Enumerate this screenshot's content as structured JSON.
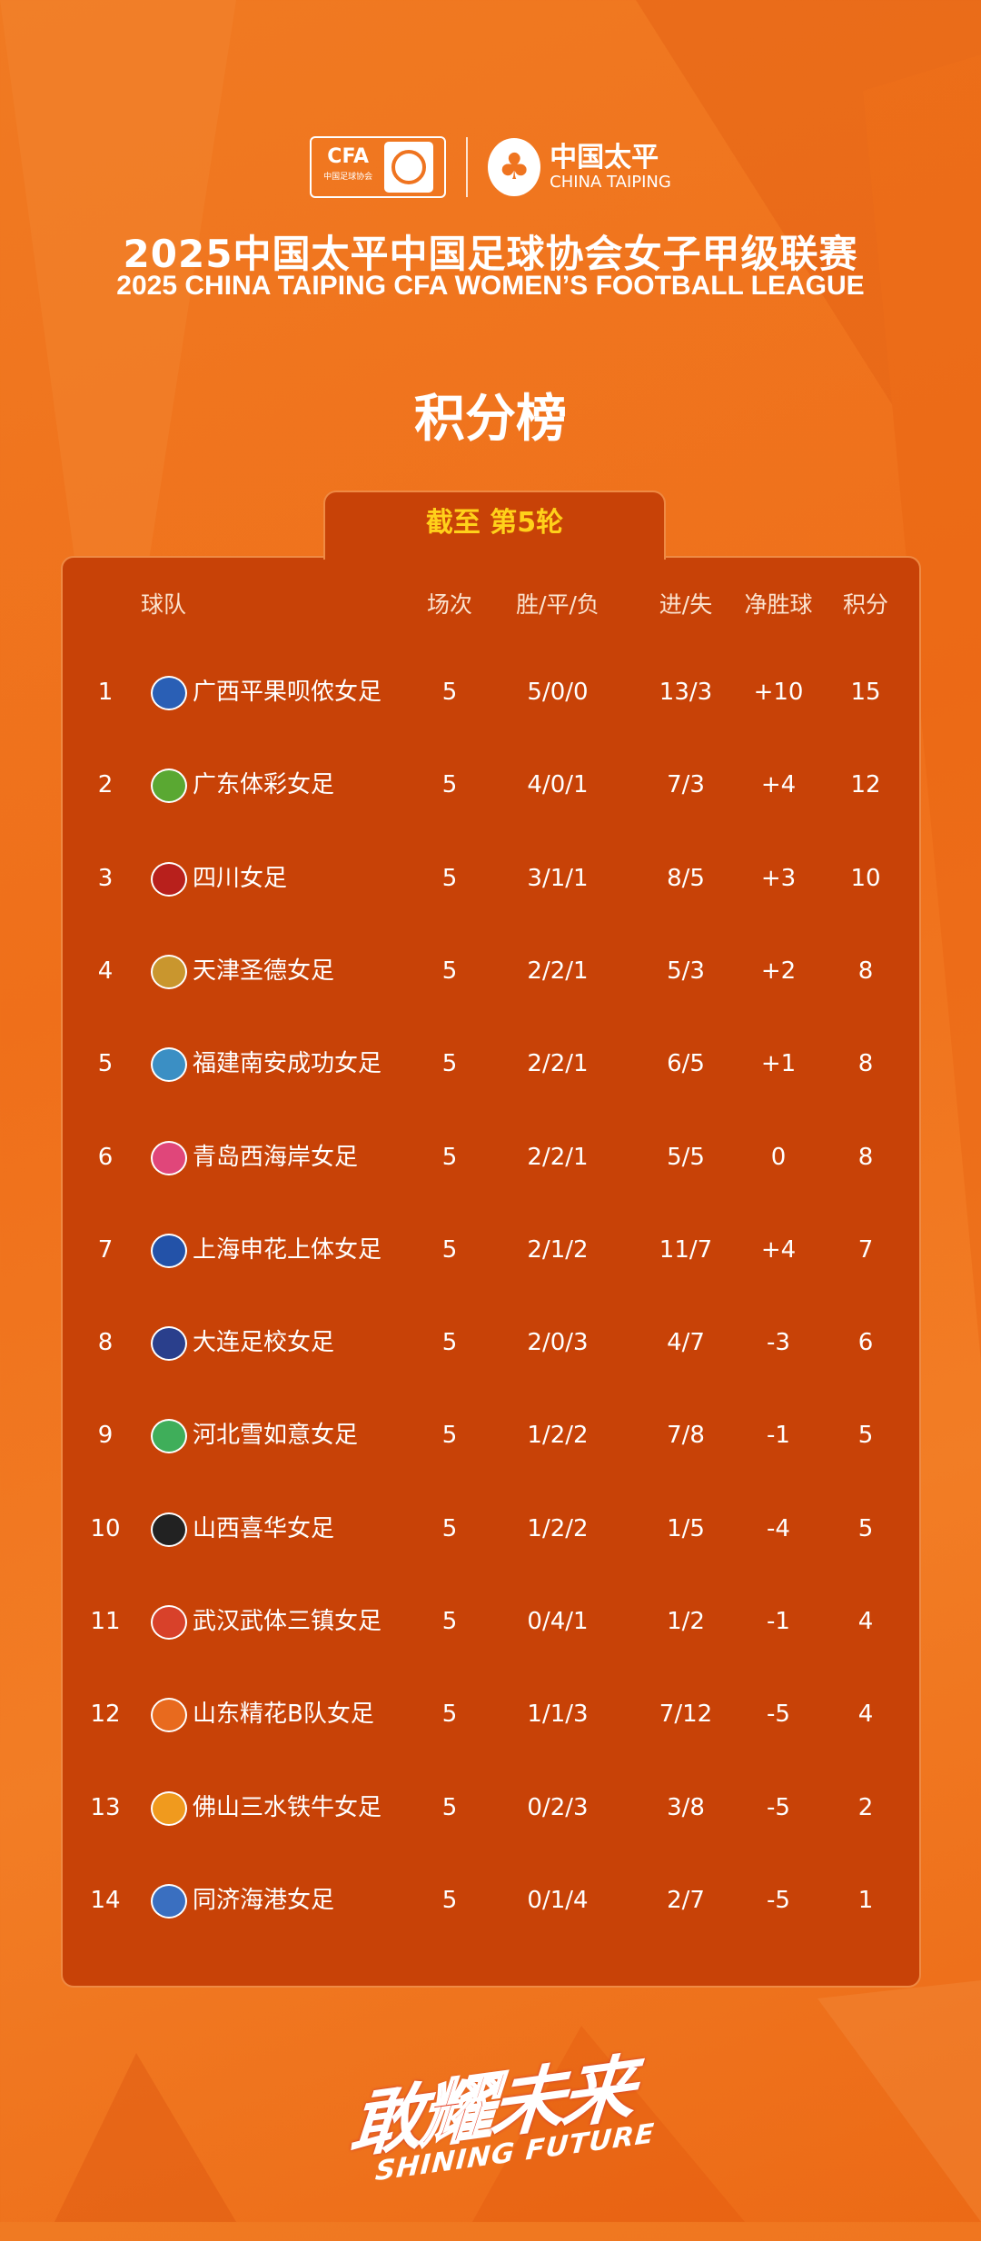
{
  "header": {
    "cfa_logo": {
      "text": "CFA",
      "subtext": "中国足球协会"
    },
    "sponsor_logo": {
      "cn": "中国太平",
      "en": "CHINA TAIPING"
    },
    "title_cn": "2025中国太平中国足球协会女子甲级联赛",
    "title_en": "2025 CHINA TAIPING CFA WOMEN’S FOOTBALL LEAGUE",
    "heading": "积分榜"
  },
  "round_tab": "截至 第5轮",
  "table": {
    "columns": {
      "team": "球队",
      "played": "场次",
      "wdl": "胜/平/负",
      "goals": "进/失",
      "gd": "净胜球",
      "points": "积分"
    },
    "rows": [
      {
        "rank": "1",
        "team": "广西平果呗侬女足",
        "played": "5",
        "wdl": "5/0/0",
        "goals": "13/3",
        "gd": "+10",
        "points": "15",
        "badge_color": "#2a5fb5"
      },
      {
        "rank": "2",
        "team": "广东体彩女足",
        "played": "5",
        "wdl": "4/0/1",
        "goals": "7/3",
        "gd": "+4",
        "points": "12",
        "badge_color": "#5aa832"
      },
      {
        "rank": "3",
        "team": "四川女足",
        "played": "5",
        "wdl": "3/1/1",
        "goals": "8/5",
        "gd": "+3",
        "points": "10",
        "badge_color": "#b8201c"
      },
      {
        "rank": "4",
        "team": "天津圣德女足",
        "played": "5",
        "wdl": "2/2/1",
        "goals": "5/3",
        "gd": "+2",
        "points": "8",
        "badge_color": "#c9962e"
      },
      {
        "rank": "5",
        "team": "福建南安成功女足",
        "played": "5",
        "wdl": "2/2/1",
        "goals": "6/5",
        "gd": "+1",
        "points": "8",
        "badge_color": "#3b8fc4"
      },
      {
        "rank": "6",
        "team": "青岛西海岸女足",
        "played": "5",
        "wdl": "2/2/1",
        "goals": "5/5",
        "gd": "0",
        "points": "8",
        "badge_color": "#e0467a"
      },
      {
        "rank": "7",
        "team": "上海申花上体女足",
        "played": "5",
        "wdl": "2/1/2",
        "goals": "11/7",
        "gd": "+4",
        "points": "7",
        "badge_color": "#2352a8"
      },
      {
        "rank": "8",
        "team": "大连足校女足",
        "played": "5",
        "wdl": "2/0/3",
        "goals": "4/7",
        "gd": "-3",
        "points": "6",
        "badge_color": "#2a3f8c"
      },
      {
        "rank": "9",
        "team": "河北雪如意女足",
        "played": "5",
        "wdl": "1/2/2",
        "goals": "7/8",
        "gd": "-1",
        "points": "5",
        "badge_color": "#3fae5a"
      },
      {
        "rank": "10",
        "team": "山西喜华女足",
        "played": "5",
        "wdl": "1/2/2",
        "goals": "1/5",
        "gd": "-4",
        "points": "5",
        "badge_color": "#222222"
      },
      {
        "rank": "11",
        "team": "武汉武体三镇女足",
        "played": "5",
        "wdl": "0/4/1",
        "goals": "1/2",
        "gd": "-1",
        "points": "4",
        "badge_color": "#d8412a"
      },
      {
        "rank": "12",
        "team": "山东精花B队女足",
        "played": "5",
        "wdl": "1/1/3",
        "goals": "7/12",
        "gd": "-5",
        "points": "4",
        "badge_color": "#e86a1e"
      },
      {
        "rank": "13",
        "team": "佛山三水铁牛女足",
        "played": "5",
        "wdl": "0/2/3",
        "goals": "3/8",
        "gd": "-5",
        "points": "2",
        "badge_color": "#f09a1e"
      },
      {
        "rank": "14",
        "team": "同济海港女足",
        "played": "5",
        "wdl": "0/1/4",
        "goals": "2/7",
        "gd": "-5",
        "points": "1",
        "badge_color": "#3a6fc0"
      }
    ]
  },
  "footer": {
    "slogan_cn_1": "敢",
    "slogan_cn_2": "耀",
    "slogan_cn_3": "未来",
    "slogan_en": "SHINING FUTURE"
  },
  "colors": {
    "background": "#f07a22",
    "panel": "#c84207",
    "round_label": "#ffd11a"
  }
}
